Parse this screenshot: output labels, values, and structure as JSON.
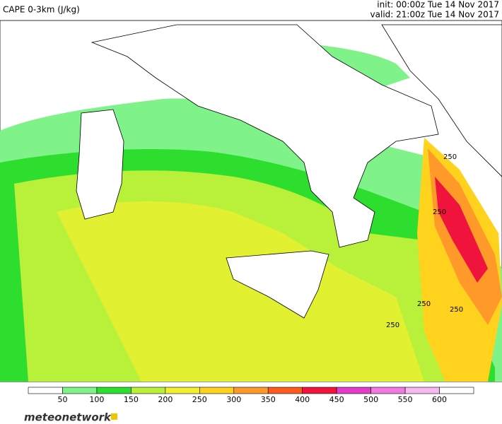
{
  "header": {
    "title": "CAPE 0-3km (J/kg)",
    "init": "init: 00:00z Tue 14 Nov 2017",
    "valid": "valid: 21:00z Tue 14 Nov 2017"
  },
  "map": {
    "contour_labels": [
      "250",
      "250",
      "250",
      "250",
      "250"
    ]
  },
  "colorbar": {
    "levels": [
      50,
      100,
      150,
      200,
      250,
      300,
      350,
      400,
      450,
      500,
      550,
      600
    ],
    "colors": [
      "#ffffff",
      "#80f28a",
      "#2ede2e",
      "#b8f03a",
      "#f0f030",
      "#ffd21e",
      "#ff9a2a",
      "#ff5a1e",
      "#f0143c",
      "#e23cc8",
      "#f07ae0",
      "#f8b8f0",
      "#ffffff"
    ]
  },
  "footer": {
    "logo": "meteonetwork"
  }
}
